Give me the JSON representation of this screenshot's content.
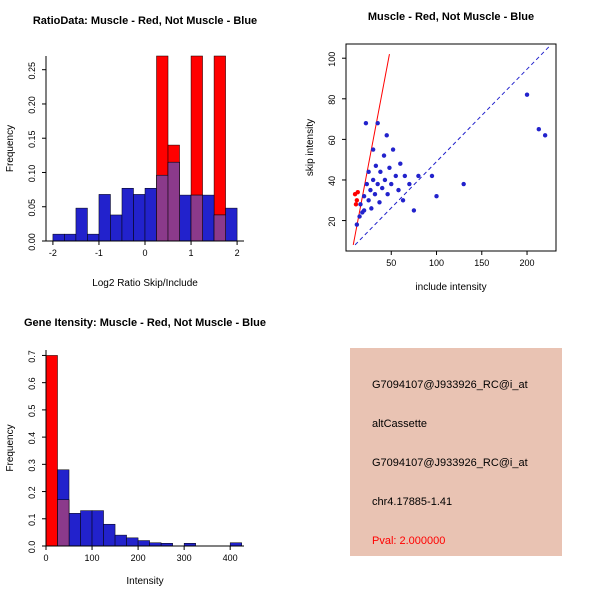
{
  "figure": {
    "background": "#FFFFFF"
  },
  "colors": {
    "red": "#FF0000",
    "blue": "#2222CC",
    "overlap": "#8B3A8B",
    "axis": "#000000",
    "info_bg": "#E9C3B3",
    "pval_color": "#FF0000"
  },
  "chart_data": [
    {
      "id": "ratio_histogram",
      "type": "bar",
      "subtype": "overlaid-histogram",
      "title": "RatioData: Muscle - Red, Not Muscle - Blue",
      "xlabel": "Log2 Ratio Skip/Include",
      "ylabel": "Frequency",
      "xlim": [
        -2.15,
        2.15
      ],
      "ylim": [
        0,
        0.27
      ],
      "xticks": [
        [
          -2,
          "-2"
        ],
        [
          -1,
          "-1"
        ],
        [
          0,
          "0"
        ],
        [
          1,
          "1"
        ],
        [
          2,
          "2"
        ]
      ],
      "yticks": [
        [
          0,
          "0.00"
        ],
        [
          0.05,
          "0.05"
        ],
        [
          0.1,
          "0.10"
        ],
        [
          0.15,
          "0.15"
        ],
        [
          0.2,
          "0.20"
        ],
        [
          0.25,
          "0.25"
        ]
      ],
      "grid": false,
      "legend": "none",
      "bin_width": 0.25,
      "series": [
        {
          "name": "Muscle (Red)",
          "color_key": "red",
          "bins": [
            [
              0.25,
              0.27
            ],
            [
              0.5,
              0.14
            ],
            [
              1.0,
              0.27
            ],
            [
              1.5,
              0.27
            ]
          ]
        },
        {
          "name": "Not Muscle (Blue)",
          "color_key": "blue",
          "bins": [
            [
              -2,
              0.01
            ],
            [
              -1.75,
              0.01
            ],
            [
              -1.5,
              0.048
            ],
            [
              -1.25,
              0.01
            ],
            [
              -1,
              0.068
            ],
            [
              -0.75,
              0.038
            ],
            [
              -0.5,
              0.077
            ],
            [
              -0.25,
              0.068
            ],
            [
              0,
              0.077
            ],
            [
              0.25,
              0.096
            ],
            [
              0.5,
              0.115
            ],
            [
              0.75,
              0.067
            ],
            [
              1,
              0.067
            ],
            [
              1.25,
              0.067
            ],
            [
              1.5,
              0.038
            ],
            [
              1.75,
              0.048
            ]
          ]
        }
      ]
    },
    {
      "id": "intensity_scatter",
      "type": "scatter",
      "title": "Muscle - Red, Not Muscle - Blue",
      "xlabel": "include intensity",
      "ylabel": "skip intensity",
      "xlim": [
        0,
        232
      ],
      "ylim": [
        5,
        107
      ],
      "xticks": [
        [
          50,
          "50"
        ],
        [
          100,
          "100"
        ],
        [
          150,
          "150"
        ],
        [
          200,
          "200"
        ]
      ],
      "yticks": [
        [
          20,
          "20"
        ],
        [
          40,
          "40"
        ],
        [
          60,
          "60"
        ],
        [
          80,
          "80"
        ],
        [
          100,
          "100"
        ]
      ],
      "grid": false,
      "legend": "none",
      "box": true,
      "series": [
        {
          "name": "Not Muscle (Blue)",
          "color_key": "blue",
          "points": [
            [
              12,
              18
            ],
            [
              15,
              22
            ],
            [
              16,
              28
            ],
            [
              18,
              24
            ],
            [
              20,
              32
            ],
            [
              20,
              25
            ],
            [
              22,
              68
            ],
            [
              23,
              38
            ],
            [
              25,
              30
            ],
            [
              25,
              44
            ],
            [
              27,
              35
            ],
            [
              28,
              26
            ],
            [
              30,
              40
            ],
            [
              30,
              55
            ],
            [
              32,
              33
            ],
            [
              33,
              47
            ],
            [
              35,
              68
            ],
            [
              35,
              38
            ],
            [
              37,
              29
            ],
            [
              38,
              44
            ],
            [
              40,
              36
            ],
            [
              42,
              52
            ],
            [
              43,
              40
            ],
            [
              45,
              62
            ],
            [
              46,
              33
            ],
            [
              48,
              46
            ],
            [
              50,
              38
            ],
            [
              52,
              55
            ],
            [
              55,
              42
            ],
            [
              58,
              35
            ],
            [
              60,
              48
            ],
            [
              63,
              30
            ],
            [
              65,
              42
            ],
            [
              70,
              38
            ],
            [
              75,
              25
            ],
            [
              80,
              42
            ],
            [
              95,
              42
            ],
            [
              100,
              32
            ],
            [
              130,
              38
            ],
            [
              200,
              82
            ],
            [
              213,
              65
            ],
            [
              220,
              62
            ]
          ]
        },
        {
          "name": "Muscle (Red)",
          "color_key": "red",
          "points": [
            [
              10,
              33
            ],
            [
              12,
              30
            ],
            [
              13,
              34
            ],
            [
              11,
              28
            ]
          ]
        }
      ],
      "lines": [
        {
          "name": "muscle-fit-line",
          "color_key": "red",
          "dash": false,
          "from": [
            8,
            8
          ],
          "to": [
            48,
            102
          ]
        },
        {
          "name": "not-muscle-fit-line",
          "color_key": "blue",
          "dash": true,
          "from": [
            10,
            8
          ],
          "to": [
            225,
            106
          ]
        }
      ]
    },
    {
      "id": "gene_intensity_histogram",
      "type": "bar",
      "subtype": "overlaid-histogram",
      "title": "Gene Itensity: Muscle - Red, Not Muscle - Blue",
      "xlabel": "Intensity",
      "ylabel": "Frequency",
      "xlim": [
        0,
        430
      ],
      "ylim": [
        0,
        0.72
      ],
      "xticks": [
        [
          0,
          "0"
        ],
        [
          100,
          "100"
        ],
        [
          200,
          "200"
        ],
        [
          300,
          "300"
        ],
        [
          400,
          "400"
        ]
      ],
      "yticks": [
        [
          0,
          "0.0"
        ],
        [
          0.1,
          "0.1"
        ],
        [
          0.2,
          "0.2"
        ],
        [
          0.3,
          "0.3"
        ],
        [
          0.4,
          "0.4"
        ],
        [
          0.5,
          "0.5"
        ],
        [
          0.6,
          "0.6"
        ],
        [
          0.7,
          "0.7"
        ]
      ],
      "grid": false,
      "legend": "none",
      "bin_width": 25,
      "series": [
        {
          "name": "Muscle (Red)",
          "color_key": "red",
          "bins": [
            [
              0,
              0.7
            ],
            [
              25,
              0.17
            ]
          ]
        },
        {
          "name": "Not Muscle (Blue)",
          "color_key": "blue",
          "bins": [
            [
              25,
              0.28
            ],
            [
              50,
              0.12
            ],
            [
              75,
              0.13
            ],
            [
              100,
              0.13
            ],
            [
              125,
              0.08
            ],
            [
              150,
              0.04
            ],
            [
              175,
              0.03
            ],
            [
              200,
              0.02
            ],
            [
              225,
              0.012
            ],
            [
              250,
              0.01
            ],
            [
              300,
              0.01
            ],
            [
              400,
              0.012
            ]
          ]
        }
      ]
    }
  ],
  "info_panel": {
    "probe_id": "G7094107@J933926_RC@i_at",
    "event_type": "altCassette",
    "gene_id": "G7094107@J933926_RC@i_at",
    "location": "chr4.17885-1.41",
    "pval": "Pval: 2.000000"
  }
}
